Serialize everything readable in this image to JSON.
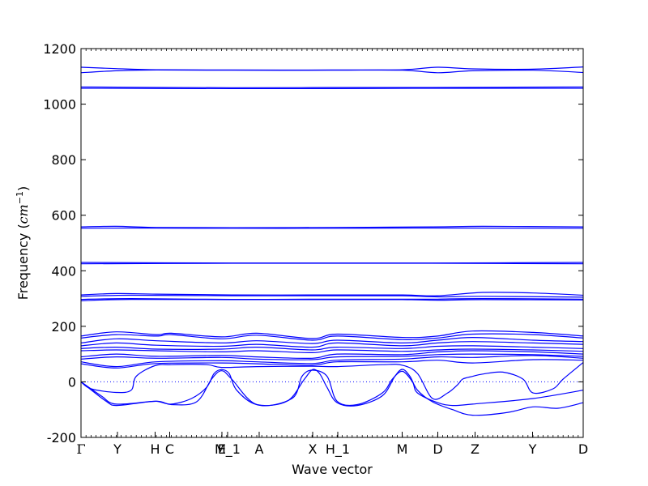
{
  "chart_data": {
    "type": "line",
    "title": "",
    "xlabel": "Wave vector",
    "ylabel_text": "Frequency (",
    "ylabel_math": "cm",
    "ylabel_exp": "−1",
    "ylabel_close": ")",
    "ylim": [
      -200,
      1200
    ],
    "xlim": [
      0,
      1
    ],
    "y_ticks": [
      -200,
      0,
      200,
      400,
      600,
      800,
      1000,
      1200
    ],
    "zero_line": "dotted",
    "grid": false,
    "legend": "none",
    "colors": {
      "bands": "#0000ff",
      "zero": "#0000ff",
      "axes": "#000000"
    },
    "x_ticks": [
      {
        "label": "Γ",
        "x": 0.0
      },
      {
        "label": "Y",
        "x": 0.0726
      },
      {
        "label": "H",
        "x": 0.1476
      },
      {
        "label": "C",
        "x": 0.1766
      },
      {
        "label": "E",
        "x": 0.2806
      },
      {
        "label": "M_1",
        "x": 0.2919
      },
      {
        "label": "A",
        "x": 0.3548
      },
      {
        "label": "X",
        "x": 0.4613
      },
      {
        "label": "H_1",
        "x": 0.5113
      },
      {
        "label": "M",
        "x": 0.6395
      },
      {
        "label": "D",
        "x": 0.7105
      },
      {
        "label": "Z",
        "x": 0.7847
      },
      {
        "label": "Y",
        "x": 0.8992
      },
      {
        "label": "D",
        "x": 1.0
      }
    ],
    "series": [
      {
        "points": [
          [
            0,
            1133
          ],
          [
            0.07,
            1128
          ],
          [
            0.15,
            1124
          ],
          [
            0.3,
            1123
          ],
          [
            0.5,
            1123
          ],
          [
            0.64,
            1124
          ],
          [
            0.71,
            1133
          ],
          [
            0.78,
            1127
          ],
          [
            0.9,
            1126
          ],
          [
            1,
            1134
          ]
        ]
      },
      {
        "points": [
          [
            0,
            1113
          ],
          [
            0.07,
            1120
          ],
          [
            0.15,
            1123
          ],
          [
            0.3,
            1122
          ],
          [
            0.5,
            1122
          ],
          [
            0.64,
            1122
          ],
          [
            0.71,
            1113
          ],
          [
            0.78,
            1120
          ],
          [
            0.9,
            1122
          ],
          [
            1,
            1114
          ]
        ]
      },
      {
        "points": [
          [
            0,
            1062
          ],
          [
            0.3,
            1059
          ],
          [
            0.5,
            1060
          ],
          [
            0.7,
            1060
          ],
          [
            1,
            1062
          ]
        ]
      },
      {
        "points": [
          [
            0,
            1057
          ],
          [
            0.3,
            1056
          ],
          [
            0.5,
            1056
          ],
          [
            0.7,
            1057
          ],
          [
            1,
            1057
          ]
        ]
      },
      {
        "points": [
          [
            0,
            558
          ],
          [
            0.07,
            560
          ],
          [
            0.15,
            556
          ],
          [
            0.3,
            555
          ],
          [
            0.5,
            556
          ],
          [
            0.7,
            558
          ],
          [
            0.8,
            560
          ],
          [
            1,
            558
          ]
        ]
      },
      {
        "points": [
          [
            0,
            553
          ],
          [
            0.1,
            554
          ],
          [
            0.3,
            553
          ],
          [
            0.5,
            553
          ],
          [
            0.7,
            554
          ],
          [
            1,
            553
          ]
        ]
      },
      {
        "points": [
          [
            0,
            430
          ],
          [
            0.3,
            428
          ],
          [
            0.5,
            428
          ],
          [
            0.7,
            428
          ],
          [
            1,
            430
          ]
        ]
      },
      {
        "points": [
          [
            0,
            425
          ],
          [
            0.3,
            427
          ],
          [
            0.5,
            427
          ],
          [
            0.7,
            427
          ],
          [
            1,
            425
          ]
        ]
      },
      {
        "points": [
          [
            0,
            313
          ],
          [
            0.07,
            318
          ],
          [
            0.15,
            316
          ],
          [
            0.3,
            313
          ],
          [
            0.5,
            313
          ],
          [
            0.64,
            313
          ],
          [
            0.71,
            310
          ],
          [
            0.8,
            322
          ],
          [
            0.9,
            320
          ],
          [
            1,
            312
          ]
        ]
      },
      {
        "points": [
          [
            0,
            308
          ],
          [
            0.1,
            312
          ],
          [
            0.3,
            310
          ],
          [
            0.5,
            310
          ],
          [
            0.64,
            310
          ],
          [
            0.71,
            306
          ],
          [
            0.8,
            308
          ],
          [
            1,
            305
          ]
        ]
      },
      {
        "points": [
          [
            0,
            297
          ],
          [
            0.1,
            300
          ],
          [
            0.3,
            297
          ],
          [
            0.5,
            298
          ],
          [
            0.64,
            298
          ],
          [
            0.71,
            298
          ],
          [
            0.8,
            300
          ],
          [
            1,
            298
          ]
        ]
      },
      {
        "points": [
          [
            0,
            292
          ],
          [
            0.1,
            297
          ],
          [
            0.3,
            296
          ],
          [
            0.5,
            296
          ],
          [
            0.64,
            296
          ],
          [
            0.71,
            294
          ],
          [
            0.8,
            296
          ],
          [
            1,
            295
          ]
        ]
      },
      {
        "points": [
          [
            0,
            165
          ],
          [
            0.07,
            180
          ],
          [
            0.15,
            170
          ],
          [
            0.18,
            175
          ],
          [
            0.28,
            162
          ],
          [
            0.35,
            175
          ],
          [
            0.46,
            156
          ],
          [
            0.51,
            172
          ],
          [
            0.64,
            160
          ],
          [
            0.71,
            165
          ],
          [
            0.78,
            183
          ],
          [
            0.9,
            178
          ],
          [
            1,
            165
          ]
        ]
      },
      {
        "points": [
          [
            0,
            158
          ],
          [
            0.07,
            170
          ],
          [
            0.15,
            165
          ],
          [
            0.18,
            170
          ],
          [
            0.28,
            155
          ],
          [
            0.35,
            168
          ],
          [
            0.46,
            150
          ],
          [
            0.51,
            165
          ],
          [
            0.64,
            152
          ],
          [
            0.71,
            158
          ],
          [
            0.78,
            172
          ],
          [
            0.9,
            170
          ],
          [
            1,
            158
          ]
        ]
      },
      {
        "points": [
          [
            0,
            140
          ],
          [
            0.07,
            155
          ],
          [
            0.15,
            148
          ],
          [
            0.28,
            140
          ],
          [
            0.35,
            148
          ],
          [
            0.46,
            138
          ],
          [
            0.51,
            150
          ],
          [
            0.64,
            140
          ],
          [
            0.71,
            150
          ],
          [
            0.78,
            160
          ],
          [
            0.9,
            150
          ],
          [
            1,
            145
          ]
        ]
      },
      {
        "points": [
          [
            0,
            130
          ],
          [
            0.07,
            140
          ],
          [
            0.15,
            132
          ],
          [
            0.28,
            128
          ],
          [
            0.35,
            135
          ],
          [
            0.46,
            125
          ],
          [
            0.51,
            140
          ],
          [
            0.64,
            130
          ],
          [
            0.71,
            140
          ],
          [
            0.78,
            145
          ],
          [
            0.9,
            140
          ],
          [
            1,
            135
          ]
        ]
      },
      {
        "points": [
          [
            0,
            120
          ],
          [
            0.07,
            125
          ],
          [
            0.15,
            118
          ],
          [
            0.28,
            118
          ],
          [
            0.35,
            125
          ],
          [
            0.46,
            115
          ],
          [
            0.51,
            125
          ],
          [
            0.64,
            120
          ],
          [
            0.71,
            128
          ],
          [
            0.78,
            130
          ],
          [
            0.9,
            125
          ],
          [
            1,
            120
          ]
        ]
      },
      {
        "points": [
          [
            0,
            112
          ],
          [
            0.07,
            115
          ],
          [
            0.15,
            112
          ],
          [
            0.28,
            108
          ],
          [
            0.35,
            112
          ],
          [
            0.46,
            105
          ],
          [
            0.51,
            115
          ],
          [
            0.64,
            110
          ],
          [
            0.71,
            115
          ],
          [
            0.78,
            118
          ],
          [
            0.9,
            115
          ],
          [
            1,
            110
          ]
        ]
      },
      {
        "points": [
          [
            0,
            90
          ],
          [
            0.07,
            100
          ],
          [
            0.15,
            92
          ],
          [
            0.28,
            95
          ],
          [
            0.35,
            90
          ],
          [
            0.46,
            85
          ],
          [
            0.51,
            100
          ],
          [
            0.64,
            98
          ],
          [
            0.71,
            108
          ],
          [
            0.78,
            112
          ],
          [
            0.9,
            108
          ],
          [
            1,
            100
          ]
        ]
      },
      {
        "points": [
          [
            0,
            82
          ],
          [
            0.07,
            90
          ],
          [
            0.15,
            85
          ],
          [
            0.28,
            88
          ],
          [
            0.35,
            82
          ],
          [
            0.46,
            80
          ],
          [
            0.51,
            90
          ],
          [
            0.64,
            92
          ],
          [
            0.71,
            98
          ],
          [
            0.78,
            100
          ],
          [
            0.9,
            98
          ],
          [
            1,
            92
          ]
        ]
      },
      {
        "points": [
          [
            0,
            72
          ],
          [
            0.07,
            55
          ],
          [
            0.15,
            72
          ],
          [
            0.28,
            76
          ],
          [
            0.35,
            72
          ],
          [
            0.46,
            66
          ],
          [
            0.51,
            78
          ],
          [
            0.64,
            82
          ],
          [
            0.71,
            90
          ],
          [
            0.78,
            88
          ],
          [
            0.9,
            95
          ],
          [
            1,
            85
          ]
        ]
      },
      {
        "points": [
          [
            0,
            65
          ],
          [
            0.07,
            50
          ],
          [
            0.15,
            66
          ],
          [
            0.28,
            68
          ],
          [
            0.35,
            65
          ],
          [
            0.46,
            60
          ],
          [
            0.51,
            72
          ],
          [
            0.64,
            72
          ],
          [
            0.71,
            78
          ],
          [
            0.78,
            68
          ],
          [
            0.9,
            80
          ],
          [
            1,
            78
          ]
        ]
      },
      {
        "points": [
          [
            0,
            0
          ],
          [
            0.02,
            -25
          ],
          [
            0.07,
            -38
          ],
          [
            0.1,
            -30
          ],
          [
            0.11,
            20
          ],
          [
            0.147,
            58
          ],
          [
            0.18,
            62
          ],
          [
            0.25,
            62
          ],
          [
            0.28,
            52
          ],
          [
            0.35,
            55
          ],
          [
            0.46,
            56
          ],
          [
            0.51,
            55
          ],
          [
            0.6,
            62
          ],
          [
            0.64,
            60
          ],
          [
            0.67,
            30
          ],
          [
            0.7,
            -60
          ],
          [
            0.73,
            -40
          ],
          [
            0.75,
            -10
          ],
          [
            0.76,
            10
          ],
          [
            0.78,
            20
          ],
          [
            0.8,
            28
          ],
          [
            0.84,
            35
          ],
          [
            0.88,
            10
          ],
          [
            0.9,
            -40
          ],
          [
            0.94,
            -25
          ],
          [
            0.96,
            10
          ],
          [
            1,
            70
          ]
        ]
      },
      {
        "points": [
          [
            0,
            0
          ],
          [
            0.04,
            -50
          ],
          [
            0.07,
            -80
          ],
          [
            0.15,
            -70
          ],
          [
            0.18,
            -82
          ],
          [
            0.23,
            -72
          ],
          [
            0.26,
            10
          ],
          [
            0.28,
            40
          ],
          [
            0.3,
            10
          ],
          [
            0.35,
            -82
          ],
          [
            0.42,
            -60
          ],
          [
            0.44,
            20
          ],
          [
            0.461,
            42
          ],
          [
            0.49,
            20
          ],
          [
            0.51,
            -70
          ],
          [
            0.55,
            -82
          ],
          [
            0.6,
            -40
          ],
          [
            0.62,
            10
          ],
          [
            0.64,
            38
          ],
          [
            0.66,
            0
          ],
          [
            0.67,
            -40
          ],
          [
            0.71,
            -75
          ],
          [
            0.74,
            -85
          ],
          [
            0.78,
            -80
          ],
          [
            0.9,
            -60
          ],
          [
            1,
            -30
          ]
        ]
      },
      {
        "points": [
          [
            0,
            0
          ],
          [
            0.05,
            -70
          ],
          [
            0.07,
            -85
          ],
          [
            0.12,
            -75
          ],
          [
            0.15,
            -70
          ],
          [
            0.18,
            -80
          ],
          [
            0.22,
            -60
          ],
          [
            0.25,
            -20
          ],
          [
            0.265,
            30
          ],
          [
            0.28,
            44
          ],
          [
            0.295,
            30
          ],
          [
            0.31,
            -30
          ],
          [
            0.35,
            -82
          ],
          [
            0.41,
            -70
          ],
          [
            0.445,
            10
          ],
          [
            0.461,
            44
          ],
          [
            0.475,
            30
          ],
          [
            0.49,
            -20
          ],
          [
            0.51,
            -75
          ],
          [
            0.55,
            -85
          ],
          [
            0.6,
            -50
          ],
          [
            0.625,
            20
          ],
          [
            0.64,
            45
          ],
          [
            0.655,
            20
          ],
          [
            0.67,
            -30
          ],
          [
            0.7,
            -72
          ],
          [
            0.74,
            -100
          ],
          [
            0.78,
            -120
          ],
          [
            0.85,
            -110
          ],
          [
            0.9,
            -90
          ],
          [
            0.95,
            -95
          ],
          [
            1,
            -75
          ]
        ]
      }
    ]
  }
}
